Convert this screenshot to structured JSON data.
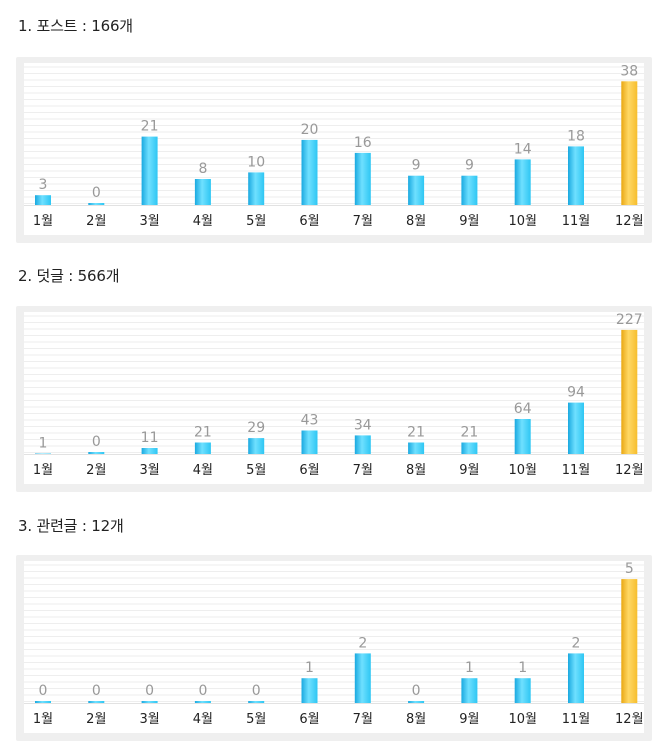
{
  "chart_data": [
    {
      "type": "bar",
      "heading": "1. 포스트 : 166개",
      "categories": [
        "1월",
        "2월",
        "3월",
        "4월",
        "5월",
        "6월",
        "7월",
        "8월",
        "9월",
        "10월",
        "11월",
        "12월"
      ],
      "values": [
        3,
        0,
        21,
        8,
        10,
        20,
        16,
        9,
        9,
        14,
        18,
        38
      ],
      "highlight_index": 11,
      "ylim": [
        0,
        43
      ],
      "colors": {
        "bar": "#2ec6f3",
        "highlight": "#f6be2d",
        "label": "#999999"
      }
    },
    {
      "type": "bar",
      "heading": "2. 덧글 : 566개",
      "categories": [
        "1월",
        "2월",
        "3월",
        "4월",
        "5월",
        "6월",
        "7월",
        "8월",
        "9월",
        "10월",
        "11월",
        "12월"
      ],
      "values": [
        1,
        0,
        11,
        21,
        29,
        43,
        34,
        21,
        21,
        64,
        94,
        227
      ],
      "highlight_index": 11,
      "ylim": [
        0,
        256
      ],
      "colors": {
        "bar": "#2ec6f3",
        "highlight": "#f6be2d",
        "label": "#999999"
      }
    },
    {
      "type": "bar",
      "heading": "3. 관련글 : 12개",
      "categories": [
        "1월",
        "2월",
        "3월",
        "4월",
        "5월",
        "6월",
        "7월",
        "8월",
        "9월",
        "10월",
        "11월",
        "12월"
      ],
      "values": [
        0,
        0,
        0,
        0,
        0,
        1,
        2,
        0,
        1,
        1,
        2,
        5
      ],
      "highlight_index": 11,
      "ylim": [
        0,
        5.65
      ],
      "colors": {
        "bar": "#2ec6f3",
        "highlight": "#f6be2d",
        "label": "#999999"
      }
    }
  ]
}
